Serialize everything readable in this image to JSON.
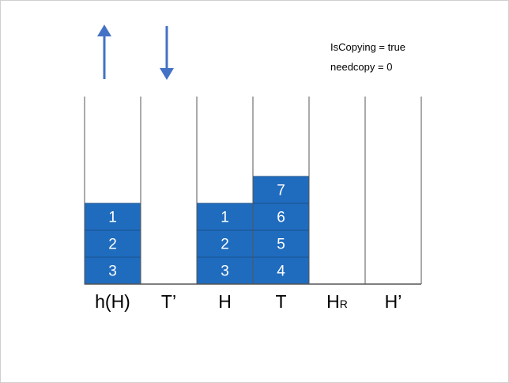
{
  "notes": [
    "IsCopying = true",
    "needcopy = 0"
  ],
  "columns": [
    {
      "label": "h(H)",
      "cells": [
        "1",
        "2",
        "3"
      ]
    },
    {
      "label": "T’",
      "cells": []
    },
    {
      "label": "H",
      "cells": [
        "1",
        "2",
        "3"
      ]
    },
    {
      "label": "T",
      "cells": [
        "7",
        "6",
        "5",
        "4"
      ]
    },
    {
      "label": "H",
      "subscript": "R",
      "cells": []
    },
    {
      "label": "H’",
      "cells": []
    }
  ]
}
